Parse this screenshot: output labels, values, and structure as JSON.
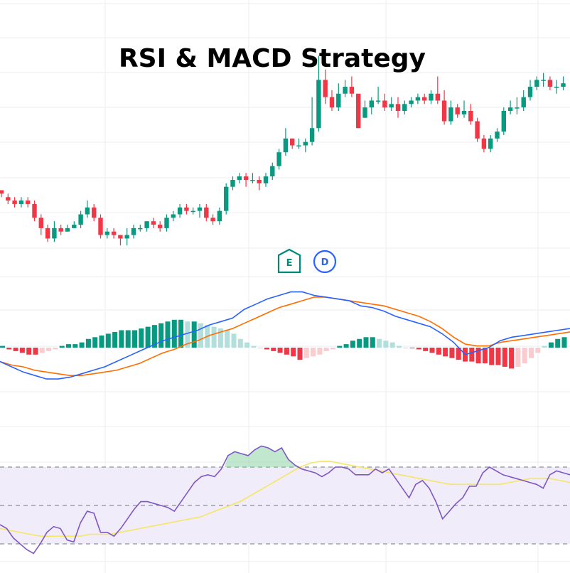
{
  "title": "RSI & MACD Strategy",
  "colors": {
    "up": "#089981",
    "down": "#f23645",
    "macd_line": "#2962ff",
    "signal_line": "#ff6d00",
    "hist_pos_strong": "#089981",
    "hist_pos_weak": "#b2dfdb",
    "hist_neg_strong": "#f23645",
    "hist_neg_weak": "#fccbcd",
    "rsi_line": "#7e57c2",
    "rsi_ma": "#f5e663",
    "rsi_band_fill": "#f1ecfa",
    "grid": "#eceef2",
    "earnings_marker": "#00897b",
    "dividend_marker": "#2962ff"
  },
  "markers": [
    {
      "label": "E",
      "type": "earnings"
    },
    {
      "label": "D",
      "type": "dividend"
    }
  ],
  "chart_data": [
    {
      "type": "candlestick",
      "candles": [
        [
          47,
          46,
          47,
          45
        ],
        [
          45,
          44,
          46,
          43
        ],
        [
          44,
          43,
          45,
          42
        ],
        [
          43,
          44,
          45,
          42
        ],
        [
          44,
          43,
          45,
          42
        ],
        [
          43,
          39,
          44,
          38
        ],
        [
          39,
          36,
          40,
          34
        ],
        [
          36,
          33,
          37,
          32
        ],
        [
          33,
          36,
          38,
          32
        ],
        [
          36,
          35,
          37,
          34
        ],
        [
          35,
          36,
          37,
          35
        ],
        [
          36,
          37,
          38,
          36
        ],
        [
          37,
          40,
          41,
          36
        ],
        [
          40,
          42,
          44,
          39
        ],
        [
          42,
          39,
          43,
          38
        ],
        [
          39,
          34,
          40,
          33
        ],
        [
          34,
          35,
          36,
          33
        ],
        [
          35,
          34,
          36,
          33
        ],
        [
          34,
          33,
          34,
          31
        ],
        [
          33,
          34,
          36,
          31
        ],
        [
          34,
          36,
          37,
          33
        ],
        [
          36,
          36,
          37,
          35
        ],
        [
          36,
          38,
          38,
          35
        ],
        [
          38,
          37,
          39,
          36
        ],
        [
          37,
          36,
          38,
          35
        ],
        [
          36,
          39,
          40,
          35
        ],
        [
          39,
          40,
          41,
          38
        ],
        [
          40,
          42,
          43,
          39
        ],
        [
          42,
          41,
          43,
          40
        ],
        [
          41,
          41,
          42,
          40
        ],
        [
          41,
          42,
          43,
          39
        ],
        [
          42,
          39,
          43,
          38
        ],
        [
          39,
          38,
          40,
          37
        ],
        [
          38,
          41,
          42,
          37
        ],
        [
          41,
          48,
          49,
          40
        ],
        [
          48,
          50,
          51,
          47
        ],
        [
          50,
          51,
          52,
          49
        ],
        [
          51,
          50,
          52,
          48
        ],
        [
          50,
          50,
          52,
          49
        ],
        [
          50,
          49,
          51,
          47
        ],
        [
          49,
          51,
          52,
          48
        ],
        [
          51,
          54,
          55,
          50
        ],
        [
          54,
          58,
          59,
          53
        ],
        [
          58,
          62,
          65,
          57
        ],
        [
          62,
          60,
          62,
          59
        ],
        [
          60,
          60,
          62,
          59
        ],
        [
          60,
          61,
          62,
          58
        ],
        [
          61,
          65,
          74,
          60
        ],
        [
          65,
          79,
          86,
          64
        ],
        [
          79,
          74,
          82,
          72
        ],
        [
          74,
          71,
          76,
          70
        ],
        [
          71,
          75,
          78,
          70
        ],
        [
          75,
          77,
          79,
          74
        ],
        [
          77,
          75,
          80,
          74
        ],
        [
          75,
          65,
          72,
          65
        ],
        [
          68,
          71,
          73,
          68
        ],
        [
          71,
          73,
          74,
          69
        ],
        [
          73,
          73,
          77,
          72
        ],
        [
          73,
          71,
          75,
          70
        ],
        [
          71,
          72,
          74,
          70
        ],
        [
          72,
          70,
          74,
          68
        ],
        [
          70,
          72,
          73,
          69
        ],
        [
          72,
          73,
          74,
          71
        ],
        [
          73,
          74,
          75,
          72
        ],
        [
          74,
          73,
          75,
          72
        ],
        [
          73,
          75,
          76,
          72
        ],
        [
          75,
          73,
          80,
          72
        ],
        [
          73,
          67,
          76,
          66
        ],
        [
          67,
          71,
          73,
          66
        ],
        [
          71,
          69,
          72,
          68
        ],
        [
          69,
          70,
          73,
          68
        ],
        [
          70,
          67,
          72,
          66
        ],
        [
          67,
          62,
          68,
          61
        ],
        [
          62,
          59,
          63,
          58
        ],
        [
          59,
          62,
          63,
          58
        ],
        [
          62,
          64,
          65,
          61
        ],
        [
          64,
          70,
          71,
          63
        ],
        [
          70,
          71,
          73,
          69
        ],
        [
          71,
          71,
          74,
          69
        ],
        [
          71,
          74,
          76,
          70
        ],
        [
          74,
          77,
          79,
          73
        ],
        [
          77,
          79,
          80,
          76
        ],
        [
          79,
          79,
          81,
          77
        ],
        [
          79,
          77,
          80,
          76
        ],
        [
          77,
          77,
          79,
          75
        ],
        [
          77,
          78,
          80,
          76
        ]
      ]
    },
    {
      "type": "line",
      "series": [
        {
          "values": [
            -0.8,
            -1.1,
            -1.4,
            -1.6,
            -1.8,
            -1.8,
            -1.7,
            -1.5,
            -1.3,
            -1.1,
            -0.8,
            -0.5,
            -0.2,
            0.1,
            0.4,
            0.6,
            0.8,
            1.0,
            1.3,
            1.5,
            1.7,
            2.2,
            2.5,
            2.8,
            3.0,
            3.2,
            3.2,
            3.0,
            2.9,
            2.8,
            2.7,
            2.4,
            2.3,
            2.1,
            1.8,
            1.6,
            1.4,
            1.2,
            0.8,
            0.3,
            -0.4,
            -0.2,
            0.0,
            0.4,
            0.6,
            0.7,
            0.8,
            0.9,
            1.0,
            1.1
          ]
        },
        {
          "values": [
            -0.8,
            -1.0,
            -1.1,
            -1.3,
            -1.4,
            -1.5,
            -1.6,
            -1.6,
            -1.5,
            -1.4,
            -1.3,
            -1.1,
            -0.9,
            -0.6,
            -0.3,
            -0.1,
            0.2,
            0.4,
            0.7,
            0.9,
            1.1,
            1.4,
            1.7,
            2.0,
            2.3,
            2.5,
            2.7,
            2.9,
            2.9,
            2.8,
            2.7,
            2.6,
            2.5,
            2.4,
            2.2,
            2.0,
            1.8,
            1.5,
            1.1,
            0.6,
            0.2,
            0.1,
            0.1,
            0.3,
            0.4,
            0.5,
            0.6,
            0.7,
            0.8,
            0.9
          ]
        },
        {
          "values": [
            0.1,
            -0.1,
            -0.2,
            -0.3,
            -0.4,
            -0.4,
            -0.3,
            -0.2,
            -0.1,
            0.1,
            0.2,
            0.2,
            0.3,
            0.5,
            0.6,
            0.7,
            0.8,
            0.9,
            1.0,
            1.0,
            1.0,
            1.1,
            1.2,
            1.3,
            1.4,
            1.5,
            1.6,
            1.6,
            1.5,
            1.5,
            1.4,
            1.3,
            1.2,
            1.1,
            1.0,
            0.8,
            0.5,
            0.3,
            0.1,
            0.0,
            -0.1,
            -0.2,
            -0.3,
            -0.4,
            -0.5,
            -0.7,
            -0.6,
            -0.5,
            -0.4,
            -0.2,
            -0.1,
            0.1,
            0.2,
            0.4,
            0.5,
            0.6,
            0.6,
            0.5,
            0.4,
            0.3,
            0.1,
            0.0,
            0.0,
            -0.1,
            -0.2,
            -0.3,
            -0.4,
            -0.5,
            -0.6,
            -0.7,
            -0.8,
            -0.8,
            -0.9,
            -0.9,
            -1.0,
            -1.0,
            -1.1,
            -1.2,
            -1.1,
            -0.9,
            -0.6,
            -0.3,
            0.1,
            0.3,
            0.5,
            0.6
          ]
        }
      ]
    },
    {
      "type": "line",
      "ylim": [
        0,
        100
      ],
      "bands": [
        30,
        50,
        70
      ],
      "series": [
        {
          "values": [
            40,
            38,
            33,
            30,
            27,
            25,
            30,
            36,
            39,
            38,
            32,
            31,
            41,
            47,
            46,
            36,
            36,
            34,
            38,
            43,
            48,
            52,
            52,
            51,
            50,
            49,
            47,
            52,
            57,
            62,
            65,
            66,
            65,
            69,
            76,
            78,
            77,
            76,
            79,
            81,
            80,
            78,
            80,
            74,
            71,
            69,
            68,
            67,
            65,
            67,
            70,
            70,
            69,
            66,
            66,
            66,
            69,
            67,
            69,
            64,
            59,
            54,
            61,
            63,
            59,
            52,
            43,
            47,
            51,
            54,
            60,
            60,
            67,
            70,
            68,
            66,
            65,
            64,
            63,
            62,
            61,
            59,
            66,
            68,
            67,
            66
          ]
        },
        {
          "values": [
            38,
            37,
            36,
            35,
            34,
            34,
            34,
            34,
            34,
            35,
            35,
            35,
            36,
            37,
            38,
            39,
            40,
            41,
            42,
            43,
            44,
            46,
            48,
            50,
            52,
            55,
            58,
            61,
            64,
            67,
            70,
            72,
            73,
            73,
            72,
            71,
            70,
            69,
            68,
            67,
            66,
            65,
            64,
            63,
            62,
            61,
            61,
            61,
            61,
            61,
            61,
            62,
            63,
            64,
            64,
            64,
            63,
            62
          ]
        }
      ]
    }
  ]
}
